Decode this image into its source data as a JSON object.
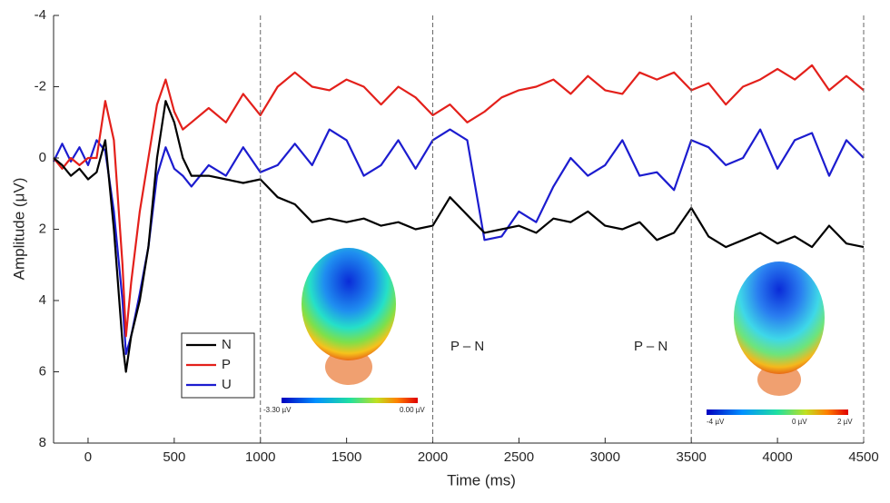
{
  "chart_data": {
    "type": "line",
    "x_label": "Time (ms)",
    "y_label": "Amplitude (μV)",
    "x": [
      -200,
      -150,
      -100,
      -50,
      0,
      50,
      100,
      150,
      200,
      220,
      250,
      300,
      350,
      400,
      450,
      500,
      550,
      600,
      700,
      800,
      900,
      1000,
      1100,
      1200,
      1300,
      1400,
      1500,
      1600,
      1700,
      1800,
      1900,
      2000,
      2100,
      2200,
      2300,
      2400,
      2500,
      2600,
      2700,
      2800,
      2900,
      3000,
      3100,
      3200,
      3300,
      3400,
      3500,
      3600,
      3700,
      3800,
      3900,
      4000,
      4100,
      4200,
      4300,
      4400,
      4500
    ],
    "series": [
      {
        "name": "N",
        "color": "#000000",
        "values": [
          0,
          0.2,
          0.5,
          0.3,
          0.6,
          0.4,
          -0.5,
          2,
          5.2,
          6,
          5,
          4,
          2.5,
          0,
          -1.6,
          -1,
          0,
          0.5,
          0.5,
          0.6,
          0.7,
          0.6,
          1.1,
          1.3,
          1.8,
          1.7,
          1.8,
          1.7,
          1.9,
          1.8,
          2.0,
          1.9,
          1.1,
          1.6,
          2.1,
          2.0,
          1.9,
          2.1,
          1.7,
          1.8,
          1.5,
          1.9,
          2.0,
          1.8,
          2.3,
          2.1,
          1.4,
          2.2,
          2.5,
          2.3,
          2.1,
          2.4,
          2.2,
          2.5,
          1.9,
          2.4,
          2.5
        ]
      },
      {
        "name": "P",
        "color": "#e3201b",
        "values": [
          0,
          0.3,
          0,
          0.2,
          0,
          0,
          -1.6,
          -0.5,
          3,
          5,
          3.5,
          1.5,
          0,
          -1.5,
          -2.2,
          -1.3,
          -0.8,
          -1.0,
          -1.4,
          -1.0,
          -1.8,
          -1.2,
          -2.0,
          -2.4,
          -2.0,
          -1.9,
          -2.2,
          -2.0,
          -1.5,
          -2.0,
          -1.7,
          -1.2,
          -1.5,
          -1.0,
          -1.3,
          -1.7,
          -1.9,
          -2.0,
          -2.2,
          -1.8,
          -2.3,
          -1.9,
          -1.8,
          -2.4,
          -2.2,
          -2.4,
          -1.9,
          -2.1,
          -1.5,
          -2.0,
          -2.2,
          -2.5,
          -2.2,
          -2.6,
          -1.9,
          -2.3,
          -1.9
        ]
      },
      {
        "name": "U",
        "color": "#1c1ccf",
        "values": [
          0.1,
          -0.4,
          0.1,
          -0.3,
          0.2,
          -0.5,
          -0.2,
          1.5,
          4,
          5.5,
          5,
          3.8,
          2.5,
          0.5,
          -0.3,
          0.3,
          0.5,
          0.8,
          0.2,
          0.5,
          -0.3,
          0.4,
          0.2,
          -0.4,
          0.2,
          -0.8,
          -0.5,
          0.5,
          0.2,
          -0.5,
          0.3,
          -0.5,
          -0.8,
          -0.5,
          2.3,
          2.2,
          1.5,
          1.8,
          0.8,
          0,
          0.5,
          0.2,
          -0.5,
          0.5,
          0.4,
          0.9,
          -0.5,
          -0.3,
          0.2,
          0,
          -0.8,
          0.3,
          -0.5,
          -0.7,
          0.5,
          -0.5,
          0
        ]
      }
    ],
    "xlim": [
      -200,
      4500
    ],
    "xticks": [
      0,
      500,
      1000,
      1500,
      2000,
      2500,
      3000,
      3500,
      4000,
      4500
    ],
    "ylim": [
      -4,
      8
    ],
    "y_reversed": true,
    "yticks": [
      -4,
      -2,
      0,
      2,
      4,
      6,
      8
    ],
    "vlines": [
      1000,
      2000,
      3500,
      4500
    ],
    "legend": "lower left",
    "annotations": [
      "P – N",
      "P – N"
    ],
    "colorbars": [
      {
        "labels": [
          "-3.30 µV",
          "0.00 µV"
        ]
      },
      {
        "labels": [
          "-4 µV",
          "0 µV",
          "2 µV"
        ]
      }
    ]
  }
}
